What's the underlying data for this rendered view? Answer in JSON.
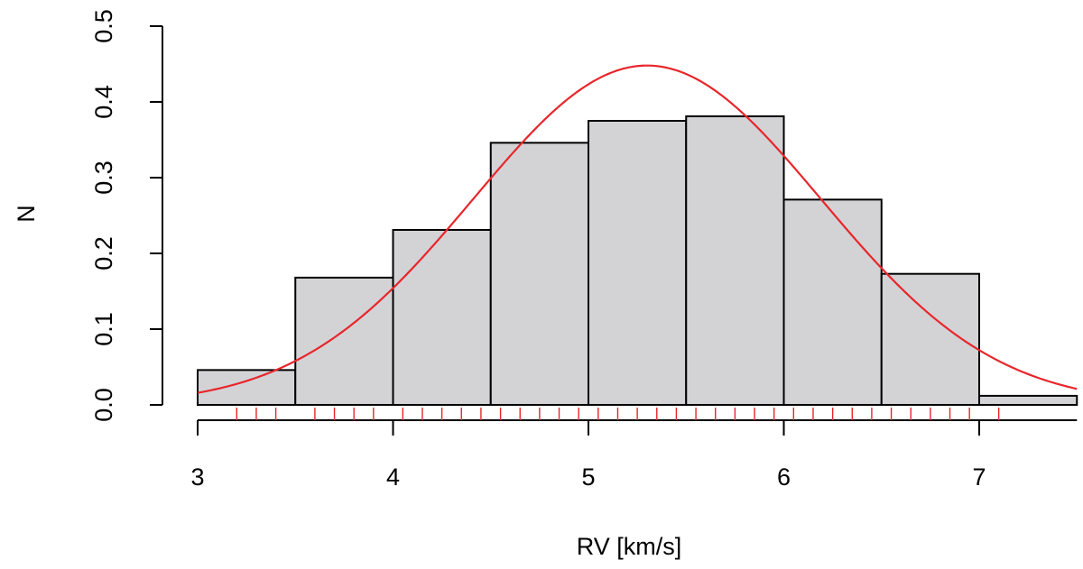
{
  "chart_data": {
    "type": "bar",
    "subtype": "histogram",
    "xlabel": "RV [km/s]",
    "ylabel": "N",
    "xlim": [
      3,
      7.5
    ],
    "ylim": [
      0,
      0.5
    ],
    "x_ticks": [
      "3",
      "4",
      "5",
      "6",
      "7"
    ],
    "y_ticks": [
      "0.0",
      "0.1",
      "0.2",
      "0.3",
      "0.4",
      "0.5"
    ],
    "bins": [
      {
        "start": 3.0,
        "end": 3.5,
        "value": 0.046
      },
      {
        "start": 3.5,
        "end": 4.0,
        "value": 0.168
      },
      {
        "start": 4.0,
        "end": 4.5,
        "value": 0.231
      },
      {
        "start": 4.5,
        "end": 5.0,
        "value": 0.346
      },
      {
        "start": 5.0,
        "end": 5.5,
        "value": 0.375
      },
      {
        "start": 5.5,
        "end": 6.0,
        "value": 0.381
      },
      {
        "start": 6.0,
        "end": 6.5,
        "value": 0.271
      },
      {
        "start": 6.5,
        "end": 7.0,
        "value": 0.173
      },
      {
        "start": 7.0,
        "end": 7.5,
        "value": 0.012
      }
    ],
    "fit_curve": {
      "type": "normal",
      "mean": 5.3,
      "sd": 0.89,
      "peak": 0.448
    },
    "rug": [
      3.2,
      3.3,
      3.4,
      3.6,
      3.7,
      3.8,
      3.9,
      4.05,
      4.15,
      4.25,
      4.35,
      4.45,
      4.55,
      4.65,
      4.75,
      4.85,
      4.95,
      5.05,
      5.15,
      5.25,
      5.35,
      5.45,
      5.55,
      5.65,
      5.75,
      5.85,
      5.95,
      6.05,
      6.15,
      6.25,
      6.35,
      6.45,
      6.55,
      6.65,
      6.75,
      6.85,
      6.95,
      7.1
    ],
    "colors": {
      "bar_fill": "#d3d3d6",
      "bar_stroke": "#000000",
      "curve": "#e8262b",
      "rug": "#e8262b"
    },
    "grid": false,
    "legend": "none"
  }
}
